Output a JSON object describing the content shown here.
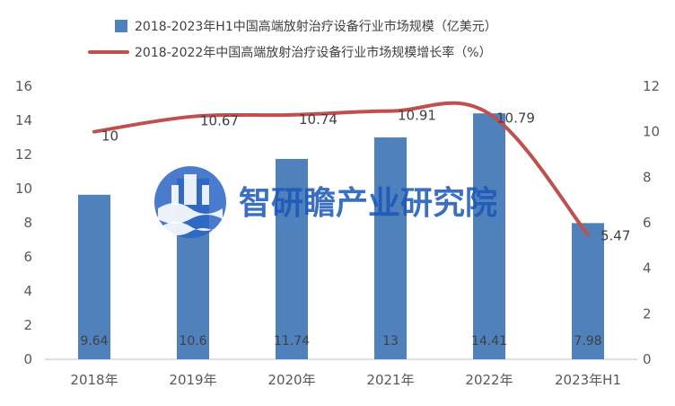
{
  "chart_data": {
    "type": "bar",
    "categories": [
      "2018年",
      "2019年",
      "2020年",
      "2021年",
      "2022年",
      "2023年H1"
    ],
    "series": [
      {
        "name": "2018-2023年H1中国高端放射治疗设备行业市场规模（亿美元）",
        "type": "bar",
        "axis": "left",
        "color": "#4f81bd",
        "values": [
          9.64,
          10.6,
          11.74,
          13,
          14.41,
          7.98
        ],
        "labels": [
          "9.64",
          "10.6",
          "11.74",
          "13",
          "14.41",
          "7.98"
        ]
      },
      {
        "name": "2018-2022年中国高端放射治疗设备行业市场规模增长率（%）",
        "type": "line",
        "axis": "right",
        "color": "#c0504d",
        "values": [
          10,
          10.67,
          10.74,
          10.91,
          10.79,
          5.47
        ],
        "labels": [
          "10",
          "10.67",
          "10.74",
          "10.91",
          "10.79",
          "5.47"
        ]
      }
    ],
    "y_left": {
      "range": [
        0,
        16
      ],
      "ticks": [
        "0",
        "2",
        "4",
        "6",
        "8",
        "10",
        "12",
        "14",
        "16"
      ]
    },
    "y_right": {
      "range": [
        0,
        12
      ],
      "ticks": [
        "0",
        "2",
        "4",
        "6",
        "8",
        "10",
        "12"
      ]
    },
    "grid": false,
    "legend": "top"
  },
  "watermark": {
    "text": "智研瞻产业研究院",
    "icon": "company-logo"
  }
}
